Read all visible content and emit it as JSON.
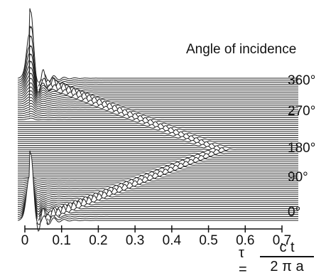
{
  "chart_data": {
    "type": "line",
    "title": "",
    "legend_title": "Angle of incidence",
    "series_axis_ticks": [
      "360°",
      "270°",
      "180°",
      "90°",
      "0°"
    ],
    "xlabel_parts": {
      "prefix": "τ =",
      "numerator": "c t",
      "denominator": "2 π a"
    },
    "x_ticks": [
      "0",
      "0.1",
      "0.2",
      "0.3",
      "0.4",
      "0.5",
      "0.6",
      "0.7"
    ],
    "xlim": [
      -0.02,
      0.72
    ],
    "angle_range": [
      0,
      360
    ],
    "waterfall": true,
    "creeping_wave_arrival": [
      {
        "angle": 0,
        "tau": 0.03
      },
      {
        "angle": 90,
        "tau": 0.28
      },
      {
        "angle": 180,
        "tau": 0.53
      },
      {
        "angle": 270,
        "tau": 0.28
      },
      {
        "angle": 360,
        "tau": 0.03
      }
    ],
    "peak_pulse": [
      {
        "angle": 0,
        "tau_start": 0.0,
        "relative_amplitude": 1.0
      },
      {
        "angle": 360,
        "tau_start": 0.0,
        "relative_amplitude": 1.0
      }
    ]
  }
}
